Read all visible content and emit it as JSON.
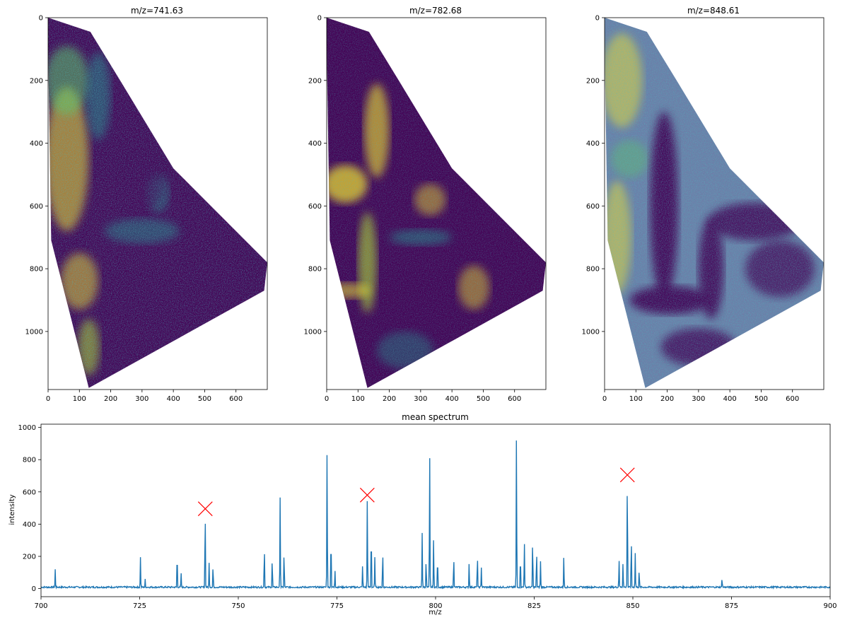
{
  "chart_data": [
    {
      "type": "heatmap",
      "title": "m/z=741.63",
      "colormap": "viridis",
      "xlim": [
        0,
        700
      ],
      "ylim": [
        1185,
        0
      ],
      "x_ticks": [
        "0",
        "100",
        "200",
        "300",
        "400",
        "500",
        "600"
      ],
      "y_ticks": [
        "0",
        "200",
        "400",
        "600",
        "800",
        "1000"
      ],
      "tissue_outline": [
        [
          0,
          0
        ],
        [
          135,
          45
        ],
        [
          230,
          200
        ],
        [
          400,
          480
        ],
        [
          500,
          580
        ],
        [
          700,
          780
        ],
        [
          690,
          870
        ],
        [
          130,
          1180
        ],
        [
          10,
          710
        ],
        [
          0,
          90
        ]
      ]
    },
    {
      "type": "heatmap",
      "title": "m/z=782.68",
      "colormap": "viridis",
      "xlim": [
        0,
        700
      ],
      "ylim": [
        1185,
        0
      ],
      "x_ticks": [
        "0",
        "100",
        "200",
        "300",
        "400",
        "500",
        "600"
      ],
      "y_ticks": [
        "0",
        "200",
        "400",
        "600",
        "800",
        "1000"
      ],
      "tissue_outline": [
        [
          0,
          0
        ],
        [
          135,
          45
        ],
        [
          230,
          200
        ],
        [
          400,
          480
        ],
        [
          500,
          580
        ],
        [
          700,
          780
        ],
        [
          690,
          870
        ],
        [
          130,
          1180
        ],
        [
          10,
          710
        ],
        [
          0,
          90
        ]
      ]
    },
    {
      "type": "heatmap",
      "title": "m/z=848.61",
      "colormap": "viridis",
      "xlim": [
        0,
        700
      ],
      "ylim": [
        1185,
        0
      ],
      "x_ticks": [
        "0",
        "100",
        "200",
        "300",
        "400",
        "500",
        "600"
      ],
      "y_ticks": [
        "0",
        "200",
        "400",
        "600",
        "800",
        "1000"
      ],
      "tissue_outline": [
        [
          0,
          0
        ],
        [
          135,
          45
        ],
        [
          230,
          200
        ],
        [
          400,
          480
        ],
        [
          500,
          580
        ],
        [
          700,
          780
        ],
        [
          690,
          870
        ],
        [
          130,
          1180
        ],
        [
          10,
          710
        ],
        [
          0,
          90
        ]
      ]
    },
    {
      "type": "line",
      "title": "mean spectrum",
      "xlabel": "m/z",
      "ylabel": "intensity",
      "xlim": [
        700,
        900
      ],
      "ylim": [
        -50,
        1020
      ],
      "x_ticks": [
        "700",
        "725",
        "750",
        "775",
        "800",
        "825",
        "850",
        "875",
        "900"
      ],
      "y_ticks": [
        "0",
        "200",
        "400",
        "600",
        "800",
        "1000"
      ],
      "color": "#1f77b4",
      "peaks": [
        [
          703.6,
          120
        ],
        [
          725.2,
          195
        ],
        [
          726.4,
          60
        ],
        [
          734.5,
          225
        ],
        [
          735.5,
          100
        ],
        [
          741.6,
          490
        ],
        [
          742.6,
          160
        ],
        [
          743.6,
          145
        ],
        [
          756.6,
          260
        ],
        [
          758.6,
          190
        ],
        [
          760.6,
          565
        ],
        [
          761.6,
          235
        ],
        [
          772.5,
          870
        ],
        [
          773.5,
          330
        ],
        [
          774.5,
          115
        ],
        [
          781.5,
          145
        ],
        [
          782.7,
          570
        ],
        [
          783.7,
          355
        ],
        [
          784.6,
          195
        ],
        [
          786.6,
          235
        ],
        [
          796.6,
          345
        ],
        [
          797.6,
          185
        ],
        [
          798.5,
          850
        ],
        [
          799.5,
          315
        ],
        [
          800.5,
          200
        ],
        [
          804.6,
          200
        ],
        [
          808.5,
          160
        ],
        [
          810.6,
          210
        ],
        [
          811.6,
          130
        ],
        [
          820.5,
          965
        ],
        [
          821.5,
          210
        ],
        [
          822.5,
          290
        ],
        [
          824.6,
          310
        ],
        [
          825.6,
          240
        ],
        [
          826.6,
          170
        ],
        [
          832.5,
          200
        ],
        [
          846.5,
          180
        ],
        [
          847.5,
          160
        ],
        [
          848.6,
          700
        ],
        [
          849.6,
          320
        ],
        [
          850.6,
          220
        ],
        [
          851.6,
          120
        ],
        [
          872.6,
          65
        ]
      ],
      "markers": [
        {
          "mz": 741.63,
          "intensity": 495
        },
        {
          "mz": 782.68,
          "intensity": 580
        },
        {
          "mz": 848.61,
          "intensity": 705
        }
      ],
      "marker_color": "#ff0000"
    }
  ]
}
